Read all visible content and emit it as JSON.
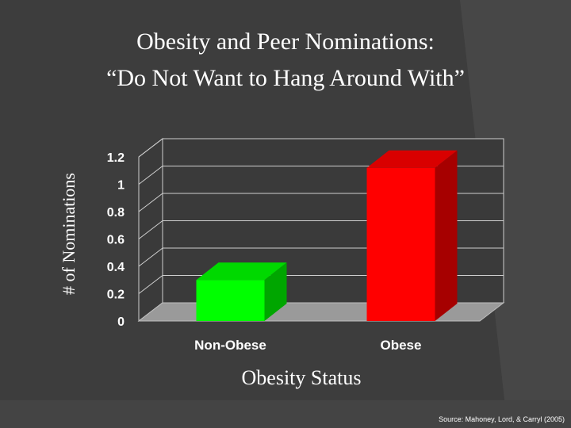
{
  "slide": {
    "title_line1": "Obesity and Peer Nominations:",
    "title_line2": "“Do Not Want to Hang Around With”",
    "source": "Source: Mahoney, Lord, & Carryl (2005)"
  },
  "colors": {
    "background": "#3d3d3d",
    "non_obese_bar": "#00ff00",
    "obese_bar": "#ff0000",
    "floor": "#9a9a9a"
  },
  "chart_data": {
    "type": "bar",
    "title": "Obesity and Peer Nominations: “Do Not Want to Hang Around With”",
    "xlabel": "Obesity Status",
    "ylabel": "# of Nominations",
    "categories": [
      "Non-Obese",
      "Obese"
    ],
    "values": [
      0.3,
      1.12
    ],
    "ylim": [
      0,
      1.2
    ],
    "yticks": [
      "0",
      "0.2",
      "0.4",
      "0.6",
      "0.8",
      "1",
      "1.2"
    ],
    "grid": true,
    "legend": "none",
    "style": "3d"
  }
}
